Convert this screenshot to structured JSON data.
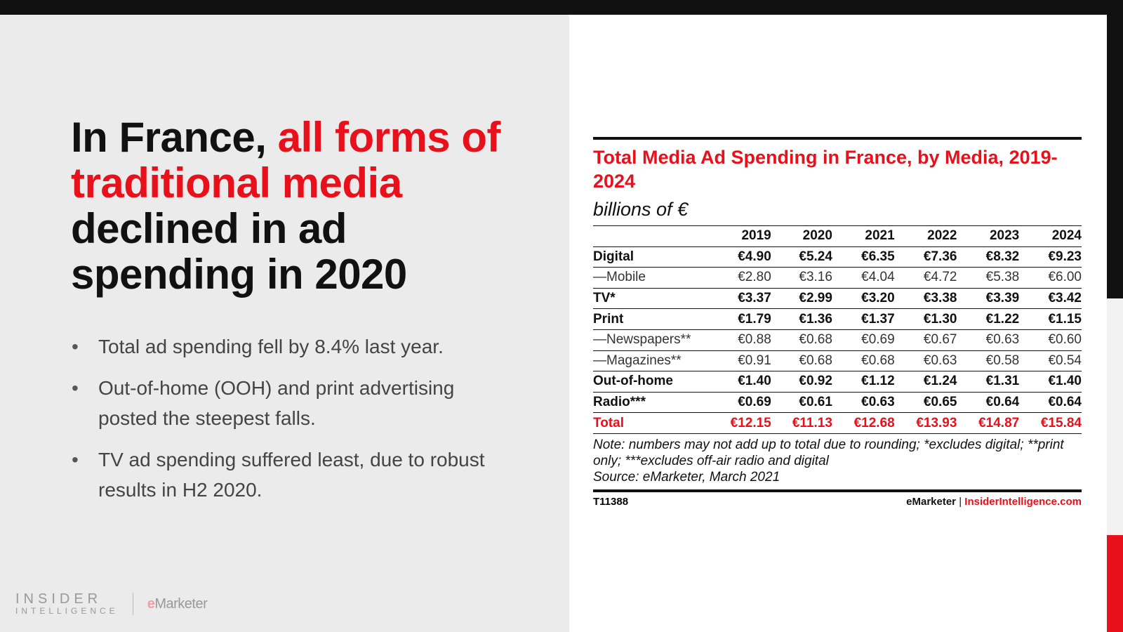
{
  "headline": {
    "part1": "In France, ",
    "highlight": "all forms of traditional media",
    "part2": " declined in ad spending in 2020"
  },
  "bullets": [
    "Total ad spending fell by 8.4% last year.",
    "Out-of-home (OOH) and print advertising posted the steepest falls.",
    "TV ad spending suffered least, due to robust results in H2 2020."
  ],
  "logo": {
    "line1": "INSIDER",
    "line2": "INTELLIGENCE",
    "em_e": "e",
    "em_rest": "Marketer"
  },
  "colors": {
    "accent": "#e8101b",
    "dark": "#111111",
    "panel": "#ebebeb"
  },
  "chart_data": {
    "type": "table",
    "title": "Total Media Ad Spending in France, by Media, 2019-2024",
    "subtitle": "billions of €",
    "columns": [
      "2019",
      "2020",
      "2021",
      "2022",
      "2023",
      "2024"
    ],
    "rows": [
      {
        "label": "Digital",
        "values": [
          "€4.90",
          "€5.24",
          "€6.35",
          "€7.36",
          "€8.32",
          "€9.23"
        ]
      },
      {
        "label": "—Mobile",
        "values": [
          "€2.80",
          "€3.16",
          "€4.04",
          "€4.72",
          "€5.38",
          "€6.00"
        ]
      },
      {
        "label": "TV*",
        "values": [
          "€3.37",
          "€2.99",
          "€3.20",
          "€3.38",
          "€3.39",
          "€3.42"
        ]
      },
      {
        "label": "Print",
        "values": [
          "€1.79",
          "€1.36",
          "€1.37",
          "€1.30",
          "€1.22",
          "€1.15"
        ]
      },
      {
        "label": "—Newspapers**",
        "values": [
          "€0.88",
          "€0.68",
          "€0.69",
          "€0.67",
          "€0.63",
          "€0.60"
        ]
      },
      {
        "label": "—Magazines**",
        "values": [
          "€0.91",
          "€0.68",
          "€0.68",
          "€0.63",
          "€0.58",
          "€0.54"
        ]
      },
      {
        "label": "Out-of-home",
        "values": [
          "€1.40",
          "€0.92",
          "€1.12",
          "€1.24",
          "€1.31",
          "€1.40"
        ]
      },
      {
        "label": "Radio***",
        "values": [
          "€0.69",
          "€0.61",
          "€0.63",
          "€0.65",
          "€0.64",
          "€0.64"
        ]
      },
      {
        "label": "Total",
        "values": [
          "€12.15",
          "€11.13",
          "€12.68",
          "€13.93",
          "€14.87",
          "€15.84"
        ]
      }
    ],
    "note": "Note: numbers may not add up to total due to rounding; *excludes digital; **print only; ***excludes off-air radio and digital",
    "source": "Source: eMarketer, March 2021",
    "id": "T11388",
    "credit_left": "eMarketer",
    "credit_sep": "|",
    "credit_right": "InsiderIntelligence.com"
  }
}
